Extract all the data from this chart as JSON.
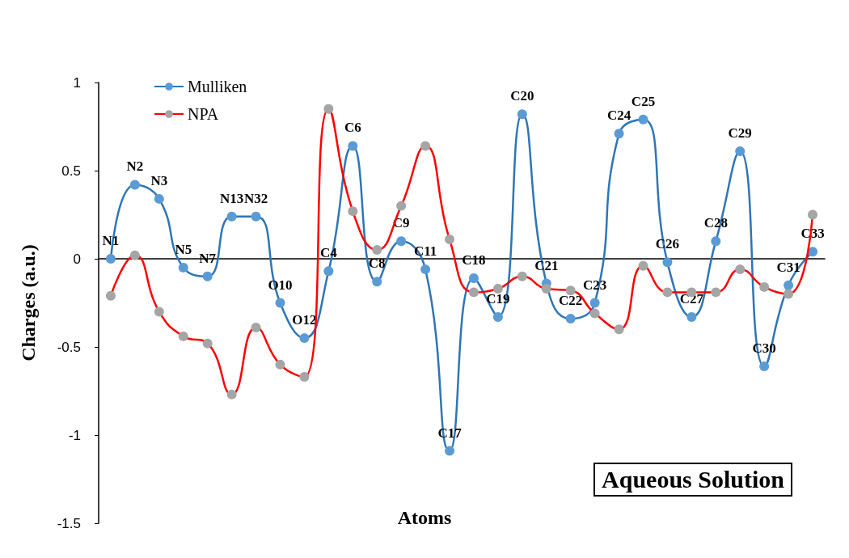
{
  "chart_data": {
    "type": "line",
    "xlabel": "Atoms",
    "ylabel": "Charges (a.u.)",
    "categories": [
      "N1",
      "N2",
      "N3",
      "N5",
      "N7",
      "N13",
      "N32",
      "O10",
      "O12",
      "C4",
      "C6",
      "C8",
      "C9",
      "C11",
      "C17",
      "C18",
      "C19",
      "C20",
      "C21",
      "C22",
      "C23",
      "C24",
      "C25",
      "C26",
      "C27",
      "C28",
      "C29",
      "C30",
      "C31",
      "C33"
    ],
    "series": [
      {
        "name": "Mulliken",
        "color": "#2e75b6",
        "colors": [
          "#5b9bd5",
          "#5b9bd5",
          "#5b9bd5",
          "#5b9bd5",
          "#5b9bd5",
          "#5b9bd5",
          "#5b9bd5",
          "#5b9bd5",
          "#5b9bd5",
          "#5b9bd5",
          "#5b9bd5",
          "#5b9bd5",
          "#5b9bd5",
          "#5b9bd5",
          "#5b9bd5",
          "#5b9bd5",
          "#5b9bd5",
          "#5b9bd5",
          "#5b9bd5",
          "#5b9bd5",
          "#5b9bd5",
          "#5b9bd5",
          "#5b9bd5",
          "#5b9bd5",
          "#5b9bd5",
          "#5b9bd5",
          "#5b9bd5",
          "#5b9bd5",
          "#5b9bd5",
          "#5b9bd5"
        ],
        "values": [
          0.0,
          0.42,
          0.34,
          -0.05,
          -0.1,
          0.24,
          0.24,
          -0.25,
          -0.45,
          -0.07,
          0.64,
          -0.13,
          0.1,
          -0.06,
          -1.09,
          -0.11,
          -0.33,
          0.82,
          -0.14,
          -0.34,
          -0.25,
          0.71,
          0.79,
          -0.02,
          -0.33,
          0.1,
          0.61,
          -0.61,
          -0.15,
          0.04
        ]
      },
      {
        "name": "NPA",
        "color": "#ff0000",
        "colors": [
          "#a5a5a5",
          "#a5a5a5",
          "#a5a5a5",
          "#a5a5a5",
          "#a5a5a5",
          "#a5a5a5",
          "#a5a5a5",
          "#a5a5a5",
          "#a5a5a5",
          "#a5a5a5",
          "#a5a5a5",
          "#a5a5a5",
          "#a5a5a5",
          "#a5a5a5",
          "#a5a5a5",
          "#a5a5a5",
          "#a5a5a5",
          "#a5a5a5",
          "#a5a5a5",
          "#a5a5a5",
          "#a5a5a5",
          "#a5a5a5",
          "#a5a5a5",
          "#a5a5a5",
          "#a5a5a5",
          "#a5a5a5",
          "#a5a5a5",
          "#a5a5a5",
          "#a5a5a5",
          "#a5a5a5"
        ],
        "values": [
          -0.21,
          0.02,
          -0.3,
          -0.44,
          -0.48,
          -0.77,
          -0.39,
          -0.6,
          -0.67,
          0.85,
          0.27,
          0.05,
          0.3,
          0.64,
          0.11,
          -0.19,
          -0.17,
          -0.1,
          -0.17,
          -0.18,
          -0.31,
          -0.4,
          -0.04,
          -0.19,
          -0.19,
          -0.19,
          -0.06,
          -0.16,
          -0.2,
          0.25
        ]
      }
    ],
    "ylim": [
      -1.5,
      1
    ],
    "yticks": [
      -1.5,
      -1,
      -0.5,
      0,
      0.5,
      1
    ],
    "tick_labels": "y",
    "grid": false,
    "legend": "top left",
    "marker": "circle",
    "line_style": "solid",
    "annotations": [
      "Aqueous Solution"
    ]
  }
}
